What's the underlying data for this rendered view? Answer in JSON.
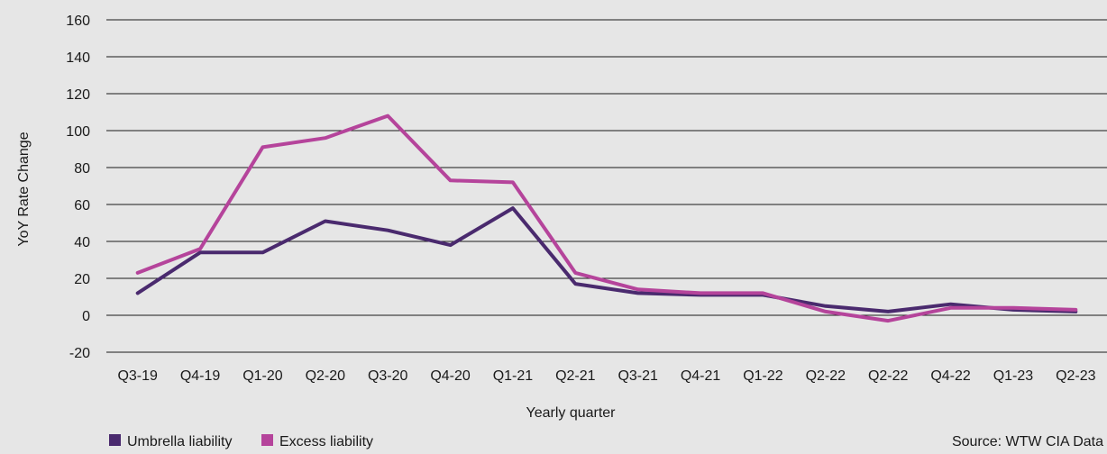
{
  "chart_data": {
    "type": "line",
    "title": "",
    "xlabel": "Yearly quarter",
    "ylabel": "YoY  Rate Change",
    "ylim": [
      -20,
      160
    ],
    "yticks": [
      -20,
      0,
      20,
      40,
      60,
      80,
      100,
      120,
      140,
      160
    ],
    "grid": true,
    "legend_position": "bottom-left",
    "categories": [
      "Q3-19",
      "Q4-19",
      "Q1-20",
      "Q2-20",
      "Q3-20",
      "Q4-20",
      "Q1-21",
      "Q2-21",
      "Q3-21",
      "Q4-21",
      "Q1-22",
      "Q2-22",
      "Q2-22",
      "Q4-22",
      "Q1-23",
      "Q2-23"
    ],
    "series": [
      {
        "name": "Umbrella liability",
        "color": "#4a2a6e",
        "values": [
          12,
          34,
          34,
          51,
          46,
          38,
          58,
          17,
          12,
          11,
          11,
          5,
          2,
          6,
          3,
          2
        ]
      },
      {
        "name": "Excess liability",
        "color": "#b5449b",
        "values": [
          23,
          36,
          91,
          96,
          108,
          73,
          72,
          23,
          14,
          12,
          12,
          2,
          -3,
          4,
          4,
          3
        ]
      }
    ],
    "source": "Source: WTW CIA Data"
  }
}
